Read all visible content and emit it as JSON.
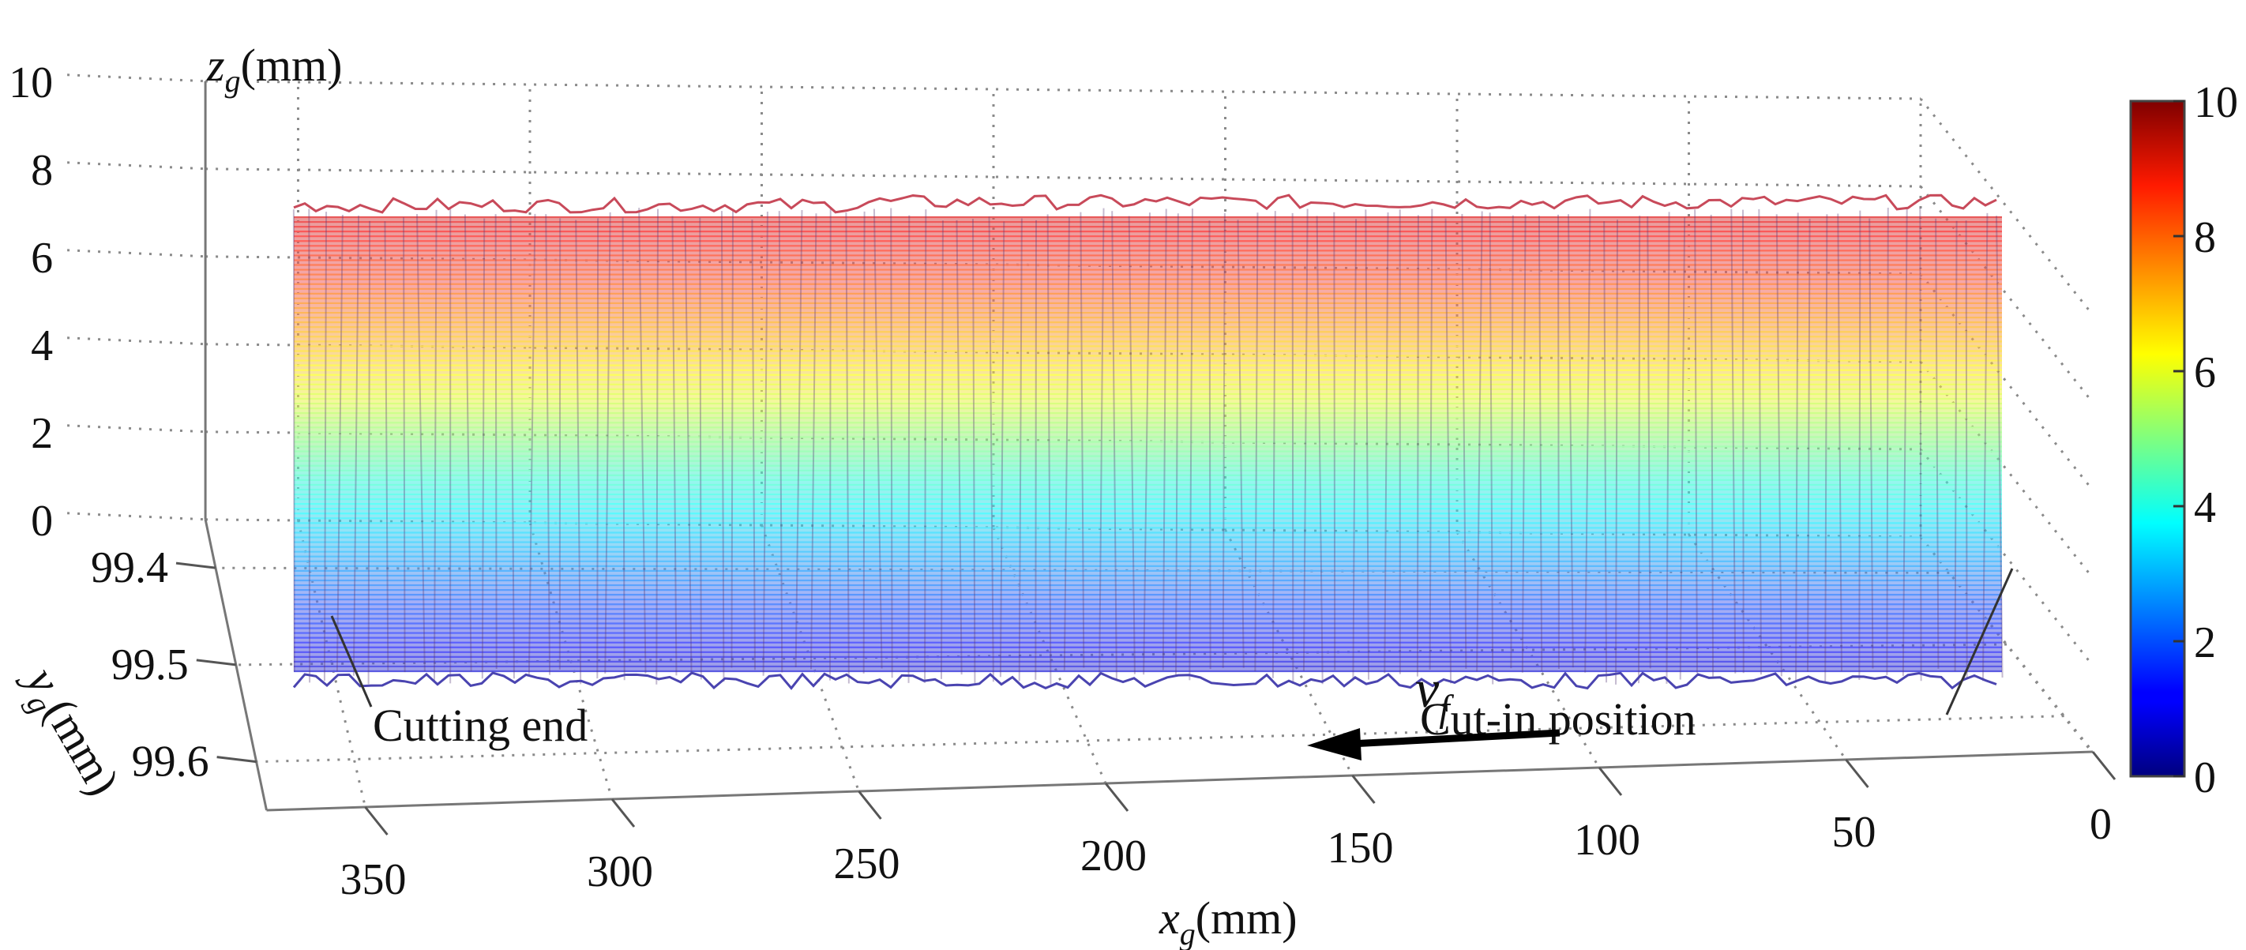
{
  "chart_data": {
    "type": "surface",
    "title": "",
    "xlabel_main": "x",
    "xlabel_sub": "g",
    "xlabel_unit": "(mm)",
    "ylabel_main": "y",
    "ylabel_sub": "g",
    "ylabel_unit": "(mm)",
    "zlabel_main": "z",
    "zlabel_sub": "g",
    "zlabel_unit": "(mm)",
    "xlim": [
      0,
      370
    ],
    "ylim": [
      99.35,
      99.65
    ],
    "zlim": [
      0,
      10
    ],
    "x_ticks": [
      "350",
      "300",
      "250",
      "200",
      "150",
      "100",
      "50",
      "0"
    ],
    "x_tick_values": [
      350,
      300,
      250,
      200,
      150,
      100,
      50,
      0
    ],
    "y_ticks": [
      "99.4",
      "99.5",
      "99.6"
    ],
    "y_tick_values": [
      99.4,
      99.5,
      99.6
    ],
    "z_ticks": [
      "10",
      "8",
      "6",
      "4",
      "2",
      "0"
    ],
    "z_tick_values": [
      10,
      8,
      6,
      4,
      2,
      0
    ],
    "colorbar": {
      "colormap": "jet",
      "range": [
        0,
        10
      ],
      "ticks": [
        "10",
        "8",
        "6",
        "4",
        "2",
        "0"
      ],
      "tick_values": [
        10,
        8,
        6,
        4,
        2,
        0
      ]
    },
    "surface": {
      "x_range": [
        10,
        370
      ],
      "z_range": [
        0,
        9
      ],
      "y_value": 99.5,
      "description": "Machined surface mesh spanning the cut length"
    },
    "annotations": {
      "cutting_end": "Cutting end",
      "cut_in": "Cut-in position",
      "feed_main": "v",
      "feed_sub": "f"
    }
  }
}
